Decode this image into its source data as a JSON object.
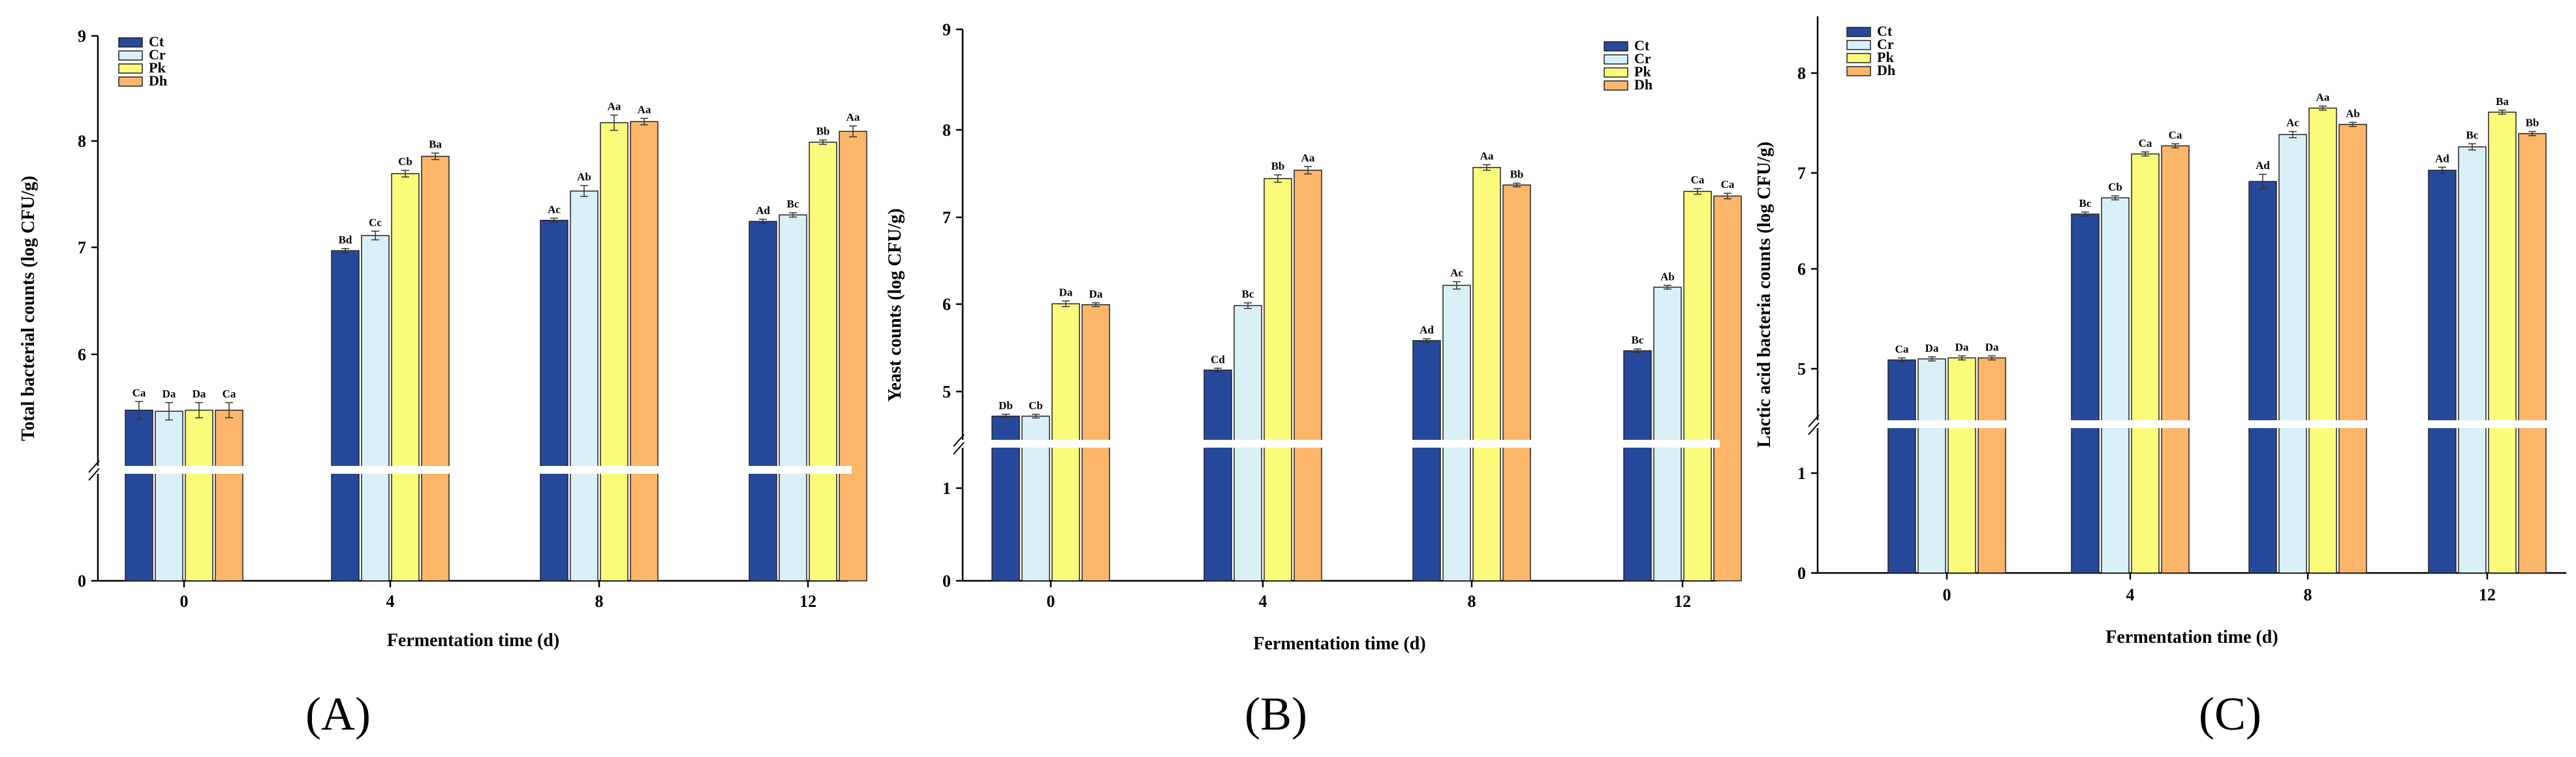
{
  "series_colors": {
    "Ct": "#26499c",
    "Cr": "#d9f0f7",
    "Pk": "#fbfb7b",
    "Dh": "#fbb66a"
  },
  "chart_data": [
    {
      "type": "bar",
      "panel_label": "(A)",
      "categories": [
        "0",
        "4",
        "8",
        "12"
      ],
      "xlabel": "Fermentation time  (d)",
      "ylabel": "Total bacterial  counts (log CFU/g)",
      "ylim": [
        0,
        9
      ],
      "axis_break": [
        1.0,
        5.0
      ],
      "lower_ticks": [
        "0"
      ],
      "upper_ticks": [
        "6",
        "7",
        "8",
        "9"
      ],
      "legend_position": "top-left",
      "series": [
        {
          "name": "Ct",
          "values": [
            5.55,
            7.02,
            7.3,
            7.29
          ],
          "errors": [
            0.08,
            0.02,
            0.02,
            0.02
          ],
          "labels": [
            "Ca",
            "Bd",
            "Ac",
            "Ad"
          ]
        },
        {
          "name": "Cr",
          "values": [
            5.54,
            7.16,
            7.57,
            7.35
          ],
          "errors": [
            0.08,
            0.04,
            0.05,
            0.02
          ],
          "labels": [
            "Da",
            "Cc",
            "Ab",
            "Bc"
          ]
        },
        {
          "name": "Pk",
          "values": [
            5.55,
            7.73,
            8.2,
            8.02
          ],
          "errors": [
            0.07,
            0.03,
            0.07,
            0.02
          ],
          "labels": [
            "Da",
            "Cb",
            "Aa",
            "Bb"
          ]
        },
        {
          "name": "Dh",
          "values": [
            5.55,
            7.89,
            8.21,
            8.12
          ],
          "errors": [
            0.07,
            0.03,
            0.03,
            0.05
          ],
          "labels": [
            "Ca",
            "Ba",
            "Aa",
            "Aa"
          ]
        }
      ]
    },
    {
      "type": "bar",
      "panel_label": "(B)",
      "categories": [
        "0",
        "4",
        "8",
        "12"
      ],
      "xlabel": "Fermentation time  (d)",
      "ylabel": "Yeast counts (log CFU/g)",
      "ylim": [
        0,
        9
      ],
      "axis_break": [
        1.5,
        4.5
      ],
      "lower_ticks": [
        "0",
        "1"
      ],
      "upper_ticks": [
        "5",
        "6",
        "7",
        "8",
        "9"
      ],
      "legend_position": "top-right",
      "series": [
        {
          "name": "Ct",
          "values": [
            4.8,
            5.3,
            5.62,
            5.51
          ],
          "errors": [
            0.02,
            0.02,
            0.02,
            0.02
          ],
          "labels": [
            "Db",
            "Cd",
            "Ad",
            "Bc"
          ]
        },
        {
          "name": "Cr",
          "values": [
            4.8,
            6.0,
            6.22,
            6.2
          ],
          "errors": [
            0.02,
            0.03,
            0.04,
            0.02
          ],
          "labels": [
            "Cb",
            "Bc",
            "Ac",
            "Ab"
          ]
        },
        {
          "name": "Pk",
          "values": [
            6.02,
            7.38,
            7.5,
            7.24
          ],
          "errors": [
            0.03,
            0.04,
            0.03,
            0.03
          ],
          "labels": [
            "Da",
            "Bb",
            "Aa",
            "Ca"
          ]
        },
        {
          "name": "Dh",
          "values": [
            6.01,
            7.47,
            7.31,
            7.19
          ],
          "errors": [
            0.02,
            0.04,
            0.02,
            0.03
          ],
          "labels": [
            "Da",
            "Aa",
            "Bb",
            "Ca"
          ]
        }
      ]
    },
    {
      "type": "bar",
      "panel_label": "(C)",
      "categories": [
        "0",
        "4",
        "8",
        "12"
      ],
      "xlabel": "Fermentation time  (d)",
      "ylabel": "Lactic acid bacteria counts (log CFU/g)",
      "ylim": [
        0,
        8.5
      ],
      "axis_break": [
        1.5,
        4.5
      ],
      "lower_ticks": [
        "0",
        "1"
      ],
      "upper_ticks": [
        "5",
        "6",
        "7",
        "8"
      ],
      "legend_position": "top-left",
      "series": [
        {
          "name": "Ct",
          "values": [
            5.13,
            6.56,
            6.88,
            6.99
          ],
          "errors": [
            0.02,
            0.02,
            0.07,
            0.03
          ],
          "labels": [
            "Ca",
            "Bc",
            "Ad",
            "Ad"
          ]
        },
        {
          "name": "Cr",
          "values": [
            5.14,
            6.72,
            7.34,
            7.22
          ],
          "errors": [
            0.02,
            0.02,
            0.03,
            0.03
          ],
          "labels": [
            "Da",
            "Cb",
            "Ac",
            "Bc"
          ]
        },
        {
          "name": "Pk",
          "values": [
            5.15,
            7.15,
            7.6,
            7.56
          ],
          "errors": [
            0.02,
            0.02,
            0.02,
            0.02
          ],
          "labels": [
            "Da",
            "Ca",
            "Aa",
            "Ba"
          ]
        },
        {
          "name": "Dh",
          "values": [
            5.15,
            7.23,
            7.44,
            7.35
          ],
          "errors": [
            0.02,
            0.02,
            0.02,
            0.02
          ],
          "labels": [
            "Da",
            "Ca",
            "Ab",
            "Bb"
          ]
        }
      ]
    }
  ]
}
